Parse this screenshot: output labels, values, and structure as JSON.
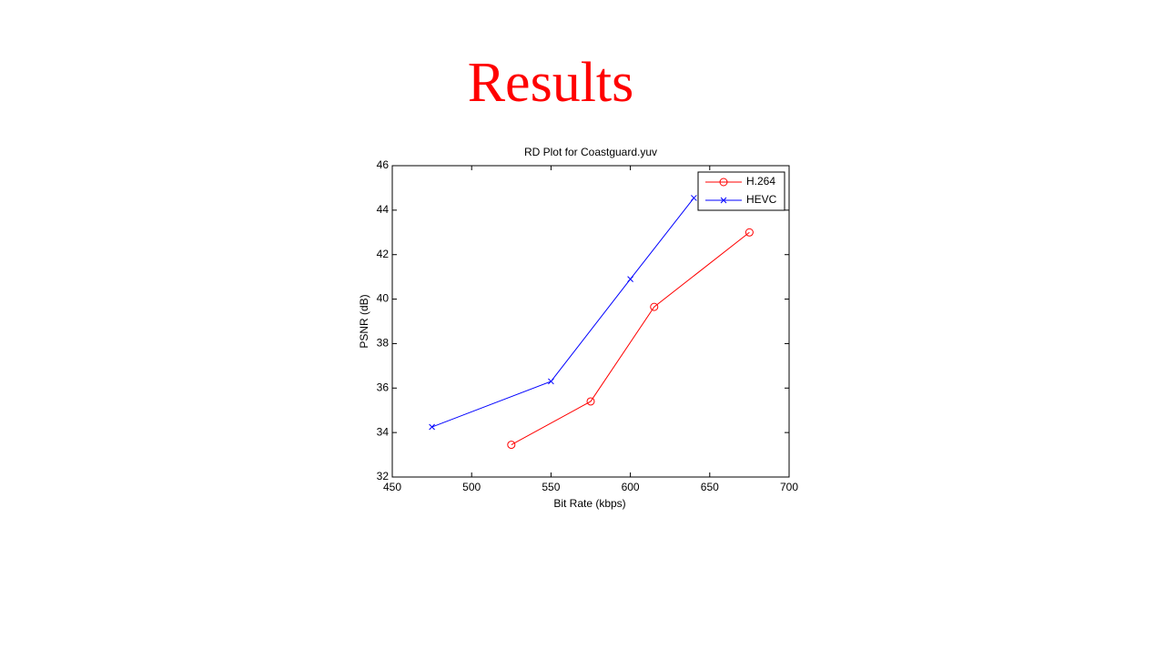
{
  "title": "Results",
  "chart_data": {
    "type": "line",
    "title": "RD Plot for Coastguard.yuv",
    "x_label": "Bit Rate (kbps)",
    "y_label": "PSNR (dB)",
    "xlim": [
      450,
      700
    ],
    "xticks": [
      450,
      500,
      550,
      600,
      650,
      700
    ],
    "ylim": [
      32,
      46
    ],
    "yticks": [
      32,
      34,
      36,
      38,
      40,
      42,
      44,
      46
    ],
    "grid": false,
    "legend": "northeast",
    "series": [
      {
        "name": "H.264",
        "color": "#ff0000",
        "marker": "o",
        "x": [
          525,
          575,
          615,
          675
        ],
        "values": [
          33.45,
          35.4,
          39.65,
          43.0
        ]
      },
      {
        "name": "HEVC",
        "color": "#0000ff",
        "marker": "x",
        "x": [
          475,
          550,
          600,
          640
        ],
        "values": [
          34.25,
          36.3,
          40.9,
          44.55
        ]
      }
    ]
  }
}
